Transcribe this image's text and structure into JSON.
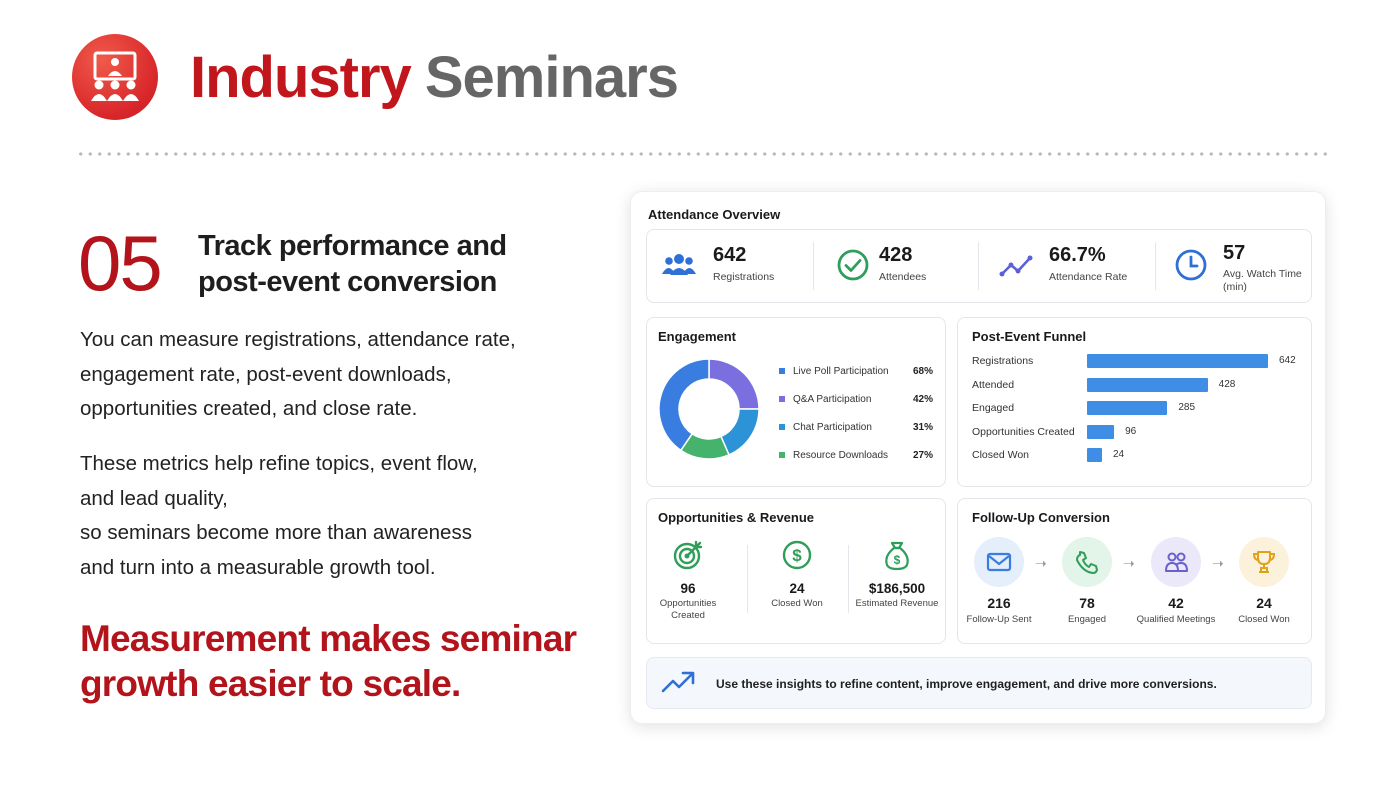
{
  "header": {
    "logo_icon": "presentation-audience-icon",
    "title_part1": "Industry",
    "title_part2": "Seminars"
  },
  "section": {
    "number": "05",
    "heading_line1": "Track performance and",
    "heading_line2": "post-event conversion"
  },
  "body": {
    "para1": [
      "You can measure registrations, attendance rate,",
      "engagement rate, post-event downloads,",
      "opportunities created, and close rate."
    ],
    "para2": [
      "These metrics help refine topics, event flow,",
      "and lead quality,",
      "so seminars become more than awareness",
      "and turn into a measurable growth tool."
    ],
    "tagline": [
      "Measurement makes seminar",
      "growth easier to scale."
    ]
  },
  "dashboard": {
    "title": "Attendance Overview",
    "overview": [
      {
        "icon": "users-icon",
        "value": "642",
        "label": "Registrations"
      },
      {
        "icon": "check-circle-icon",
        "value": "428",
        "label": "Attendees"
      },
      {
        "icon": "trend-line-icon",
        "value": "66.7%",
        "label": "Attendance Rate"
      },
      {
        "icon": "clock-icon",
        "value": "57",
        "label": "Avg. Watch Time (min)"
      }
    ],
    "engagement": {
      "title": "Engagement",
      "items": [
        {
          "label": "Live Poll Participation",
          "value": "68%",
          "color": "#3a7de0"
        },
        {
          "label": "Q&A Participation",
          "value": "42%",
          "color": "#7b6fe0"
        },
        {
          "label": "Chat Participation",
          "value": "31%",
          "color": "#2b93d6"
        },
        {
          "label": "Resource Downloads",
          "value": "27%",
          "color": "#45b36b"
        }
      ]
    },
    "funnel": {
      "title": "Post-Event Funnel",
      "max": 642,
      "rows": [
        {
          "label": "Registrations",
          "value": 642
        },
        {
          "label": "Attended",
          "value": 428
        },
        {
          "label": "Engaged",
          "value": 285
        },
        {
          "label": "Opportunities Created",
          "value": 96
        },
        {
          "label": "Closed Won",
          "value": 24
        }
      ]
    },
    "opportunities": {
      "title": "Opportunities & Revenue",
      "items": [
        {
          "icon": "target-icon",
          "value": "96",
          "label": "Opportunities Created"
        },
        {
          "icon": "dollar-circle-icon",
          "value": "24",
          "label": "Closed Won"
        },
        {
          "icon": "money-bag-icon",
          "value": "$186,500",
          "label": "Estimated Revenue"
        }
      ]
    },
    "followup": {
      "title": "Follow-Up Conversion",
      "items": [
        {
          "icon": "mail-icon",
          "value": "216",
          "label": "Follow-Up Sent",
          "bg": "#e4effb",
          "fg": "#3a7de0"
        },
        {
          "icon": "phone-icon",
          "value": "78",
          "label": "Engaged",
          "bg": "#e3f4e8",
          "fg": "#2f9e5a"
        },
        {
          "icon": "people-icon",
          "value": "42",
          "label": "Qualified Meetings",
          "bg": "#ebe8f9",
          "fg": "#6a5fcf"
        },
        {
          "icon": "trophy-icon",
          "value": "24",
          "label": "Closed Won",
          "bg": "#fcf2dc",
          "fg": "#e0a11b"
        }
      ]
    },
    "insight": {
      "icon": "trend-up-arrow-icon",
      "text": "Use these insights to refine content, improve engagement, and drive more conversions."
    }
  }
}
